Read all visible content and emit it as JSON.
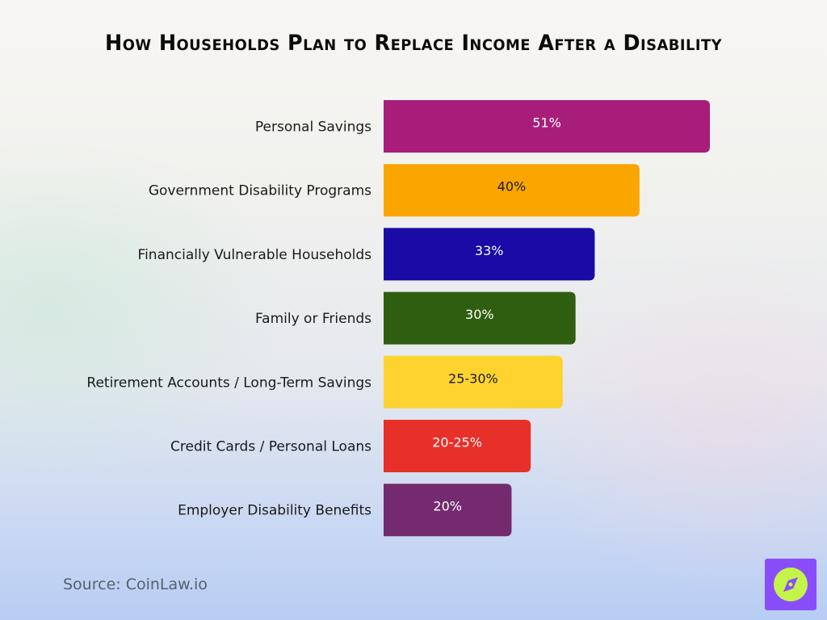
{
  "title": "How Households Plan to Replace Income After a Disability",
  "source": "Source: CoinLaw.io",
  "logo_icon": "compass-icon",
  "chart_data": {
    "type": "bar",
    "orientation": "horizontal",
    "title": "How Households Plan to Replace Income After a Disability",
    "xlabel": "",
    "ylabel": "",
    "xlim": [
      0,
      51
    ],
    "grid": false,
    "categories": [
      "Personal Savings",
      "Government Disability Programs",
      "Financially Vulnerable Households",
      "Family or Friends",
      "Retirement Accounts / Long-Term Savings",
      "Credit Cards / Personal Loans",
      "Employer Disability Benefits"
    ],
    "values": [
      51,
      40,
      33,
      30,
      28,
      23,
      20
    ],
    "labels": [
      "51%",
      "40%",
      "33%",
      "30%",
      "25-30%",
      "20-25%",
      "20%"
    ],
    "colors": [
      "#a91d7a",
      "#fba500",
      "#1a0aa6",
      "#305e10",
      "#fed32f",
      "#e8302a",
      "#742a6e"
    ],
    "label_colors": [
      "#ffffff",
      "#1a1a1a",
      "#ffffff",
      "#ffffff",
      "#1a1a1a",
      "#ffffff",
      "#ffffff"
    ]
  }
}
